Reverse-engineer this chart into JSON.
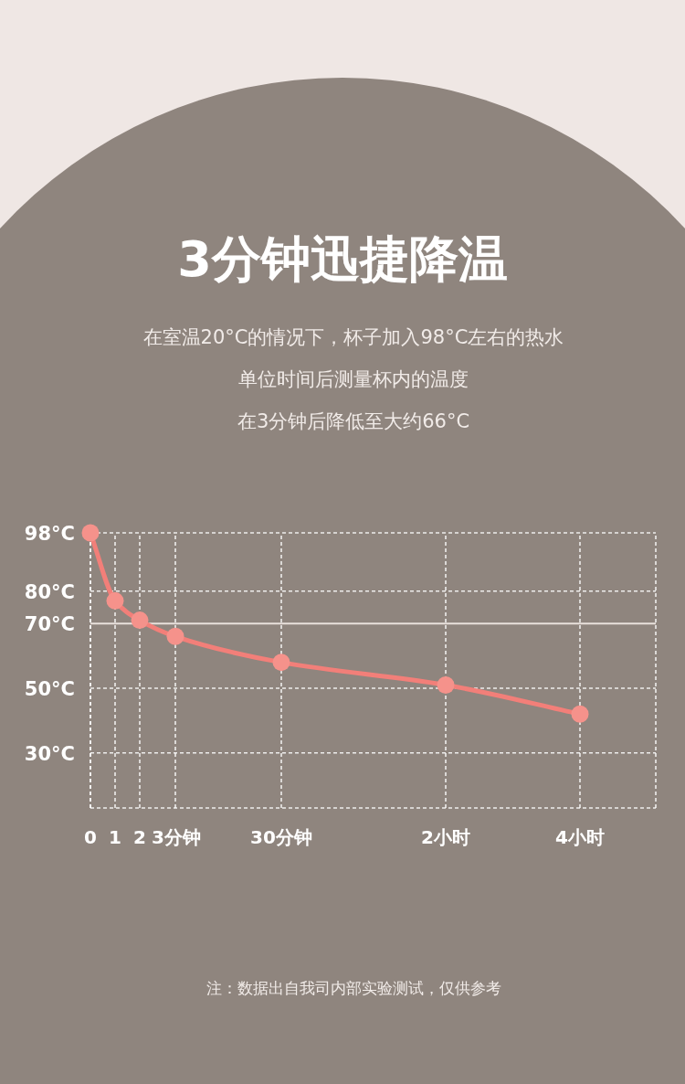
{
  "chart_data": {
    "type": "line",
    "title": "3分钟迅捷降温",
    "subtitle": "在室温20°C的情况下，杯子加入98°C左右的热水",
    "categories": [
      "0",
      "1",
      "2",
      "3分钟",
      "30分钟",
      "2小时",
      "4小时"
    ],
    "values": [
      98,
      77,
      71,
      66,
      58,
      51,
      42
    ],
    "color": "#f27f79",
    "ylim": [
      13,
      98
    ],
    "yticks": [
      {
        "value": 98,
        "label": "98°C"
      },
      {
        "value": 80,
        "label": "80°C"
      },
      {
        "value": 70,
        "label": "70°C"
      },
      {
        "value": 50,
        "label": "50°C"
      },
      {
        "value": 30,
        "label": "30°C"
      }
    ],
    "grid": true,
    "marker": "circle",
    "ref_lines": [
      {
        "axis": "y",
        "value": 70,
        "color": "#e9e0dc"
      }
    ],
    "annotations": [
      "单位时间后测量杯内的温度",
      "在3分钟后降低至大约66°C",
      "注：数据出自我司内部实验测试，仅供参考"
    ]
  }
}
